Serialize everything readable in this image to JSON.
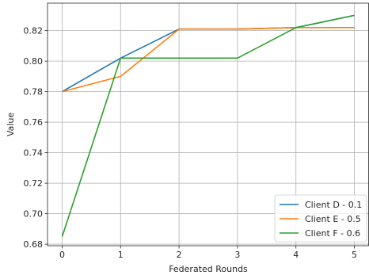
{
  "chart_data": {
    "type": "line",
    "title": "",
    "xlabel": "Federated Rounds",
    "ylabel": "Value",
    "x": [
      0,
      1,
      2,
      3,
      4,
      5
    ],
    "xlim": [
      -0.25,
      5.25
    ],
    "ylim": [
      0.679,
      0.838
    ],
    "xticks": [
      0,
      1,
      2,
      3,
      4,
      5
    ],
    "xtick_labels": [
      "0",
      "1",
      "2",
      "3",
      "4",
      "5"
    ],
    "yticks": [
      0.68,
      0.7,
      0.72,
      0.74,
      0.76,
      0.78,
      0.8,
      0.82
    ],
    "ytick_labels": [
      "0.68",
      "0.70",
      "0.72",
      "0.74",
      "0.76",
      "0.78",
      "0.80",
      "0.82"
    ],
    "grid": true,
    "legend_position": "lower-right",
    "series": [
      {
        "name": "Client D - 0.1",
        "color": "#1f77b4",
        "values": [
          0.78,
          0.802,
          0.821,
          0.821,
          0.822,
          0.83
        ]
      },
      {
        "name": "Client E - 0.5",
        "color": "#ff7f0e",
        "values": [
          0.78,
          0.79,
          0.821,
          0.821,
          0.822,
          0.822
        ]
      },
      {
        "name": "Client F - 0.6",
        "color": "#2ca02c",
        "values": [
          0.685,
          0.802,
          0.802,
          0.802,
          0.822,
          0.83
        ]
      }
    ]
  }
}
